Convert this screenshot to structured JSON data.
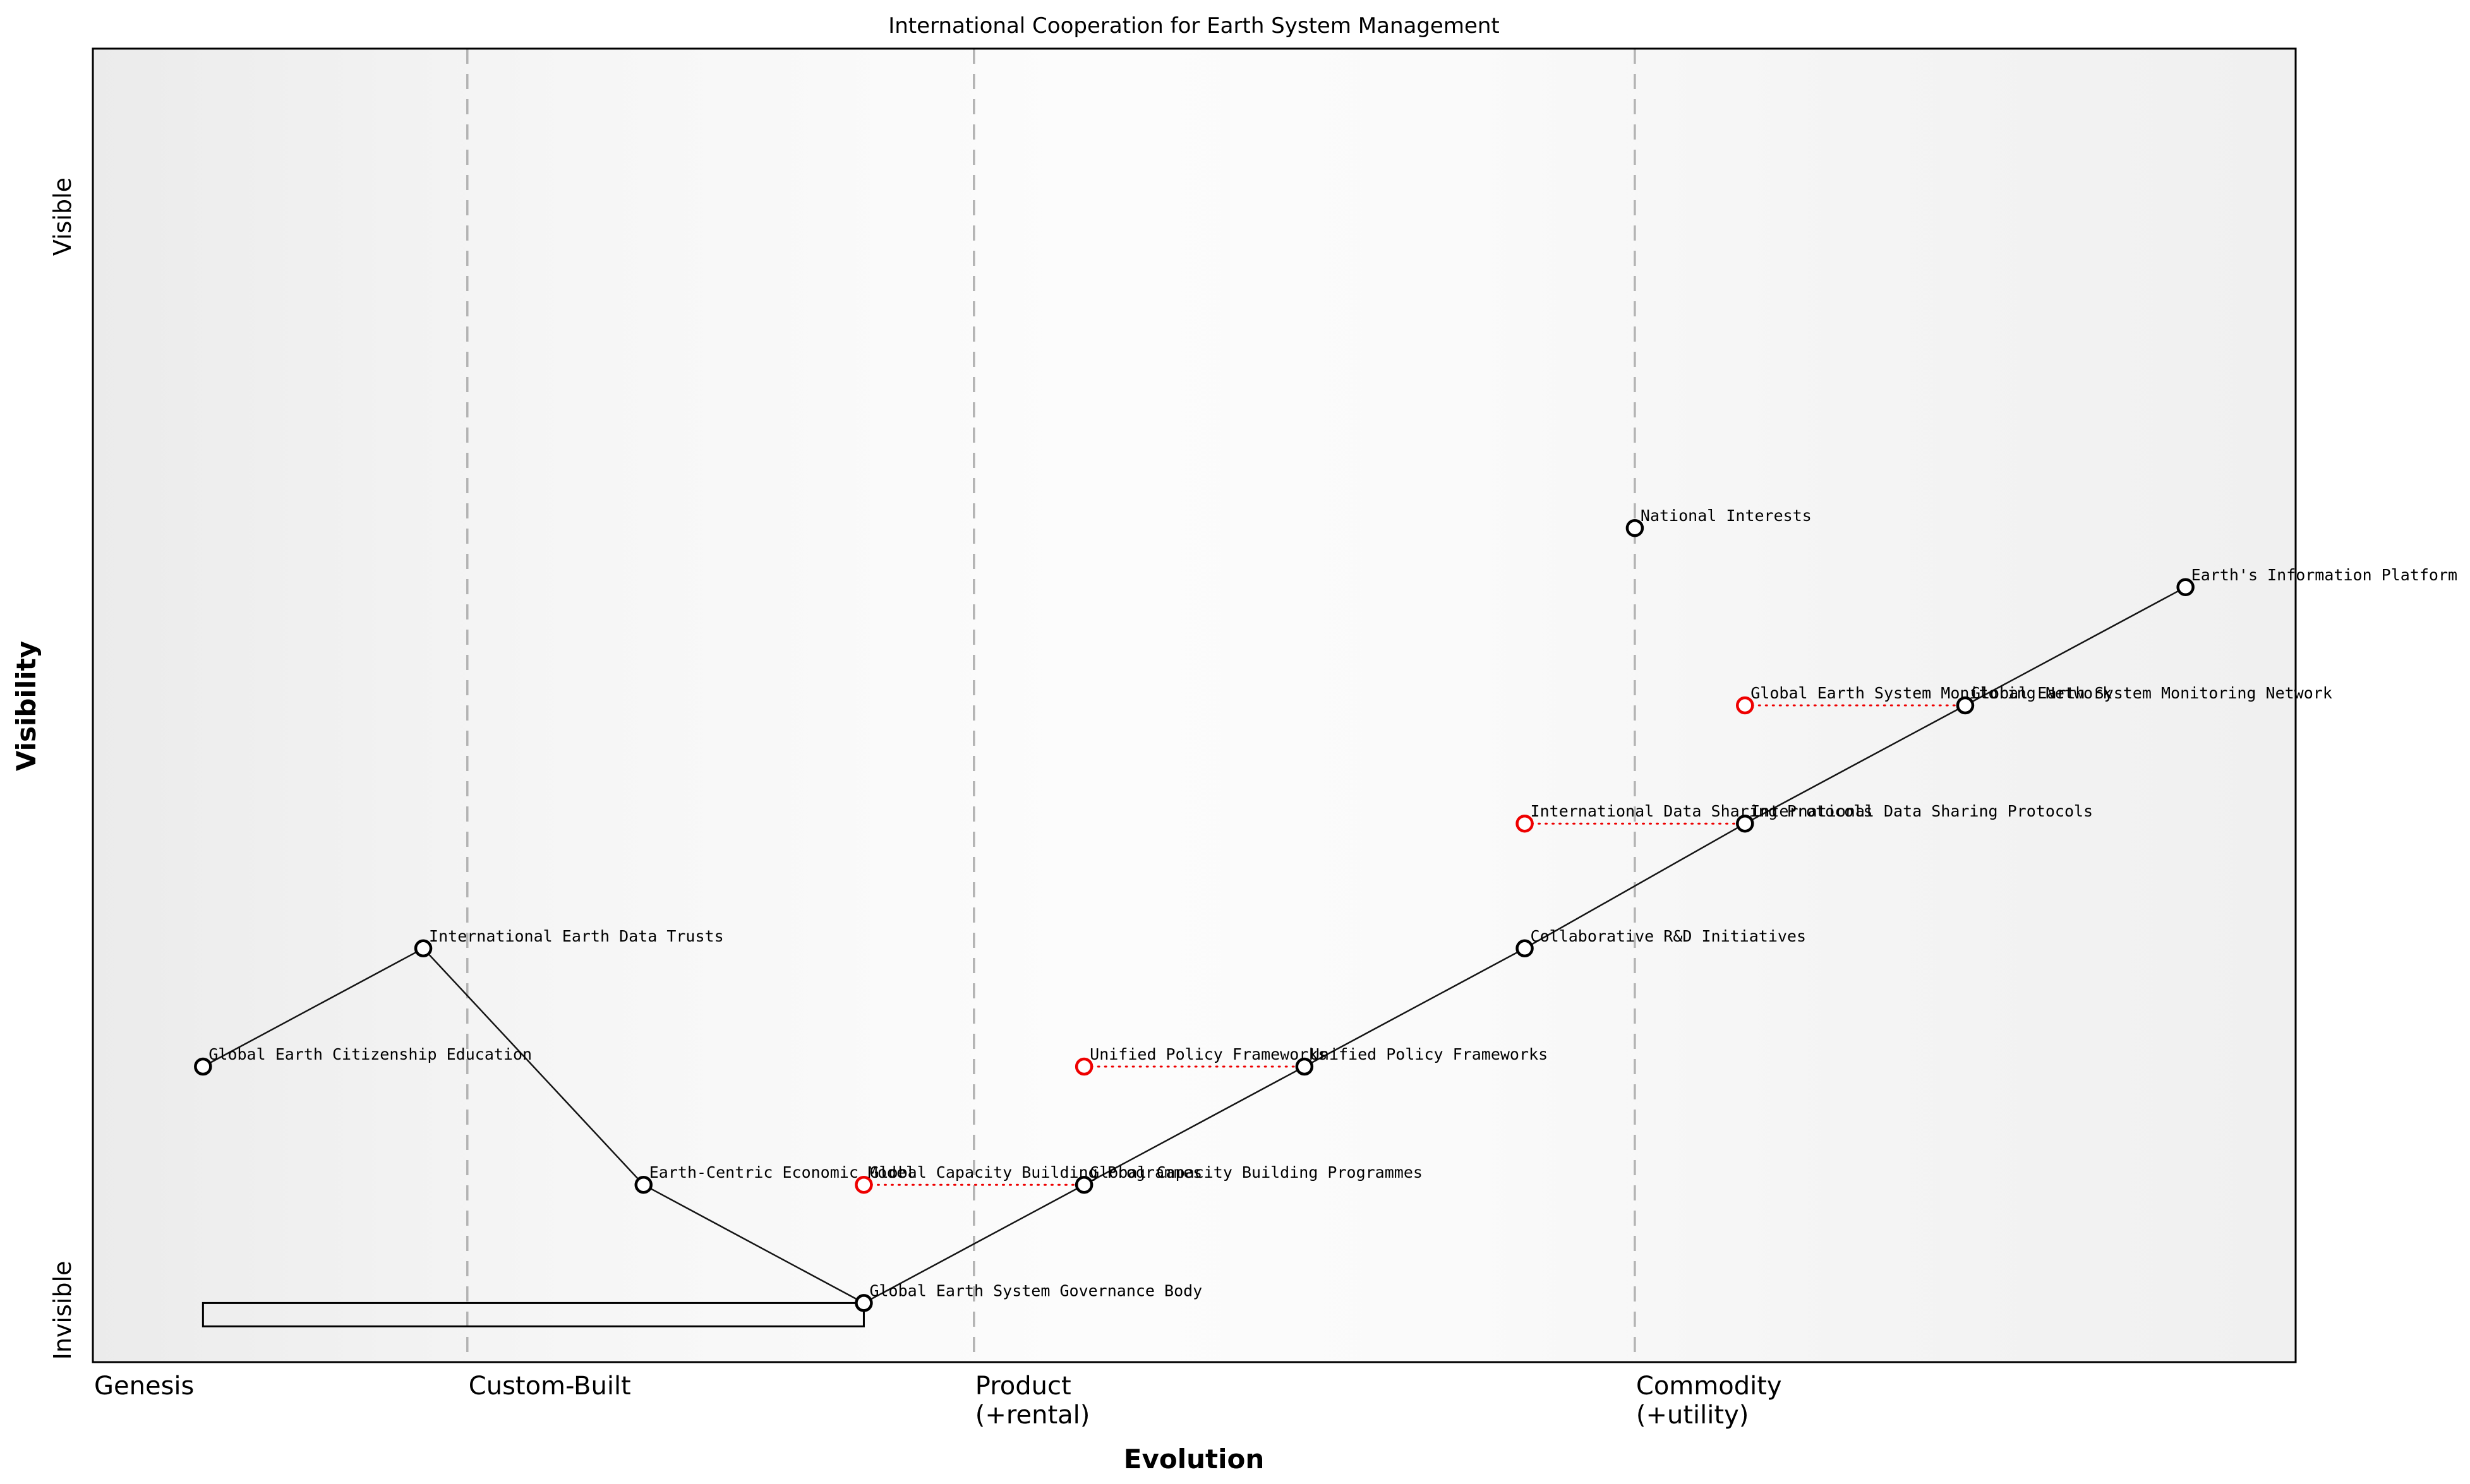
{
  "title": "International Cooperation for Earth System Management",
  "axis": {
    "x_title": "Evolution",
    "y_title": "Visibility",
    "y_max_label": "Visible",
    "y_min_label": "Invisible",
    "stages": [
      {
        "label": "Genesis",
        "sublabel": "",
        "start": 0.0
      },
      {
        "label": "Custom-Built",
        "sublabel": "",
        "start": 0.17
      },
      {
        "label": "Product",
        "sublabel": "(+rental)",
        "start": 0.4
      },
      {
        "label": "Commodity",
        "sublabel": "(+utility)",
        "start": 0.7
      }
    ]
  },
  "colors": {
    "component_stroke": "#000000",
    "component_fill": "#ffffff",
    "movement": "#ee0000",
    "stage_line": "#b3b3b3",
    "edge": "#141414",
    "plot_border": "#000000",
    "text": "#000000"
  },
  "chart_data": {
    "type": "wardley-map",
    "x_range": [
      0,
      1
    ],
    "y_range": [
      0,
      1
    ],
    "grid": "off",
    "stage_boundaries": [
      0.17,
      0.4,
      0.7
    ],
    "nodes": [
      {
        "id": "citizenship",
        "label": "Global Earth Citizenship Education",
        "evolution": 0.05,
        "visibility": 0.225
      },
      {
        "id": "trusts",
        "label": "International Earth Data Trusts",
        "evolution": 0.15,
        "visibility": 0.315
      },
      {
        "id": "economic",
        "label": "Earth-Centric Economic Model",
        "evolution": 0.25,
        "visibility": 0.135
      },
      {
        "id": "governance",
        "label": "Global Earth System Governance Body",
        "evolution": 0.35,
        "visibility": 0.045,
        "pipeline": {
          "from": 0.05,
          "to": 0.35
        }
      },
      {
        "id": "capacity",
        "label": "Global Capacity Building Programmes",
        "evolution": 0.45,
        "visibility": 0.135,
        "evolve_from": 0.35
      },
      {
        "id": "policy",
        "label": "Unified Policy Frameworks",
        "evolution": 0.55,
        "visibility": 0.225,
        "evolve_from": 0.45
      },
      {
        "id": "rnd",
        "label": "Collaborative R&D Initiatives",
        "evolution": 0.65,
        "visibility": 0.315
      },
      {
        "id": "sharing",
        "label": "International Data Sharing Protocols",
        "evolution": 0.75,
        "visibility": 0.41,
        "evolve_from": 0.65
      },
      {
        "id": "monitoring",
        "label": "Global Earth System Monitoring Network",
        "evolution": 0.85,
        "visibility": 0.5,
        "evolve_from": 0.75
      },
      {
        "id": "platform",
        "label": "Earth's Information Platform",
        "evolution": 0.95,
        "visibility": 0.59
      },
      {
        "id": "national",
        "label": "National Interests",
        "evolution": 0.7,
        "visibility": 0.635
      }
    ],
    "edges": [
      [
        "citizenship",
        "trusts"
      ],
      [
        "trusts",
        "economic"
      ],
      [
        "economic",
        "governance"
      ],
      [
        "governance",
        "capacity"
      ],
      [
        "capacity",
        "policy"
      ],
      [
        "policy",
        "rnd"
      ],
      [
        "rnd",
        "sharing"
      ],
      [
        "sharing",
        "monitoring"
      ],
      [
        "monitoring",
        "platform"
      ]
    ]
  }
}
